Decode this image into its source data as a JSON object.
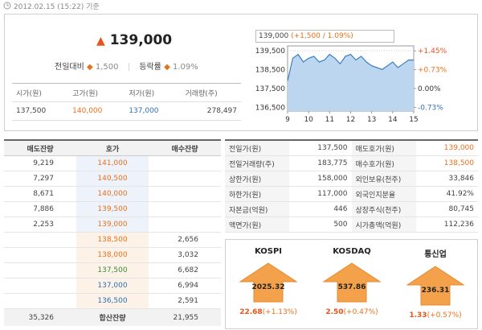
{
  "timestamp": "2012.02.15 (15:22) 기준",
  "quote": {
    "price": "139,000",
    "change_label": "전일대비",
    "change": "1,500",
    "rate_label": "등락률",
    "rate": "1.09%"
  },
  "summary": {
    "headers": [
      "시가(원)",
      "고가(원)",
      "저가(원)",
      "거래량(주)"
    ],
    "values": [
      "137,500",
      "140,000",
      "137,000",
      "278,497"
    ],
    "colors": [
      "#444444",
      "#e8701b",
      "#2f6fb7",
      "#444444"
    ]
  },
  "mini_chart": {
    "type": "area",
    "caption": "139,000",
    "caption_change": "(+1,500 / 1.09%)",
    "color": "#3a7fc1",
    "fill": "#bcd6ef",
    "x": [
      9,
      9.25,
      9.5,
      9.75,
      10,
      10.25,
      10.5,
      10.75,
      11,
      11.25,
      11.5,
      11.75,
      12,
      12.25,
      12.5,
      12.75,
      13,
      13.25,
      13.5,
      13.75,
      14,
      14.25,
      14.5,
      14.75,
      15
    ],
    "values": [
      137900,
      139100,
      139300,
      138900,
      139100,
      139200,
      138900,
      139000,
      139300,
      139100,
      138800,
      139200,
      139300,
      139000,
      139200,
      138900,
      138700,
      138600,
      138500,
      138700,
      138900,
      138600,
      138800,
      139000,
      139000
    ],
    "xlim": [
      9,
      15
    ],
    "xticks": [
      9,
      10,
      11,
      12,
      13,
      14,
      15
    ],
    "ylim": [
      136300,
      139750
    ],
    "yticks": [
      {
        "value": 136500,
        "label": "136,500"
      },
      {
        "value": 137500,
        "label": "137,500"
      },
      {
        "value": 138500,
        "label": "138,500"
      },
      {
        "value": 139500,
        "label": "139,500"
      }
    ],
    "y2lim": [
      -0.87,
      1.64
    ],
    "y2ticks": [
      {
        "value": -0.73,
        "label": "-0.73%"
      },
      {
        "value": 0,
        "label": "0.00%"
      },
      {
        "value": 0.73,
        "label": "+0.73%"
      },
      {
        "value": 1.45,
        "label": "+1.45%"
      }
    ],
    "y2tick_colors": [
      "#2f6fb7",
      "#333333",
      "#e8701b",
      "#e8541b"
    ],
    "grid": true
  },
  "order_book": {
    "headers": [
      "매도잔량",
      "호가",
      "매수잔량"
    ],
    "asks": [
      {
        "qty": "9,219",
        "price": "141,000",
        "color": "#e8701b"
      },
      {
        "qty": "7,297",
        "price": "140,500",
        "color": "#e8701b"
      },
      {
        "qty": "8,671",
        "price": "140,000",
        "color": "#e8701b"
      },
      {
        "qty": "7,886",
        "price": "139,500",
        "color": "#e8701b"
      },
      {
        "qty": "2,253",
        "price": "139,000",
        "color": "#e8701b"
      }
    ],
    "bids": [
      {
        "price": "138,500",
        "qty": "2,656",
        "color": "#e8701b"
      },
      {
        "price": "138,000",
        "qty": "3,032",
        "color": "#e8701b"
      },
      {
        "price": "137,500",
        "qty": "6,682",
        "color": "#3c8a3c"
      },
      {
        "price": "137,000",
        "qty": "6,994",
        "color": "#2f6fb7"
      },
      {
        "price": "136,500",
        "qty": "2,591",
        "color": "#2f6fb7"
      }
    ],
    "total_ask": "35,326",
    "total_label": "합산잔량",
    "total_bid": "21,955"
  },
  "info": {
    "rows": [
      [
        "전일가(원)",
        "137,500",
        "매도호가(원)",
        "139,000"
      ],
      [
        "전일거래량(주)",
        "183,775",
        "매수호가(원)",
        "138,500"
      ],
      [
        "상한가(원)",
        "158,000",
        "외인보유(천주)",
        "33,846"
      ],
      [
        "하한가(원)",
        "117,000",
        "외국인지분율",
        "41.92%"
      ],
      [
        "자본금(억원)",
        "446",
        "상장주식(천주)",
        "80,745"
      ],
      [
        "액면가(원)",
        "500",
        "시가총액(억원)",
        "112,236"
      ]
    ],
    "value_colors": [
      [
        "#444444",
        "#e8701b"
      ],
      [
        "#444444",
        "#e8701b"
      ],
      [
        "#444444",
        "#444444"
      ],
      [
        "#444444",
        "#444444"
      ],
      [
        "#444444",
        "#444444"
      ],
      [
        "#444444",
        "#444444"
      ]
    ]
  },
  "indices": [
    {
      "name": "KOSPI",
      "value": "2025.32",
      "change": "22.68",
      "rate": "(+1.13%)"
    },
    {
      "name": "KOSDAQ",
      "value": "537.86",
      "change": "2.50",
      "rate": "(+0.47%)"
    },
    {
      "name": "통신업",
      "value": "236.31",
      "change": "1.33",
      "rate": "(+0.57%)"
    }
  ]
}
